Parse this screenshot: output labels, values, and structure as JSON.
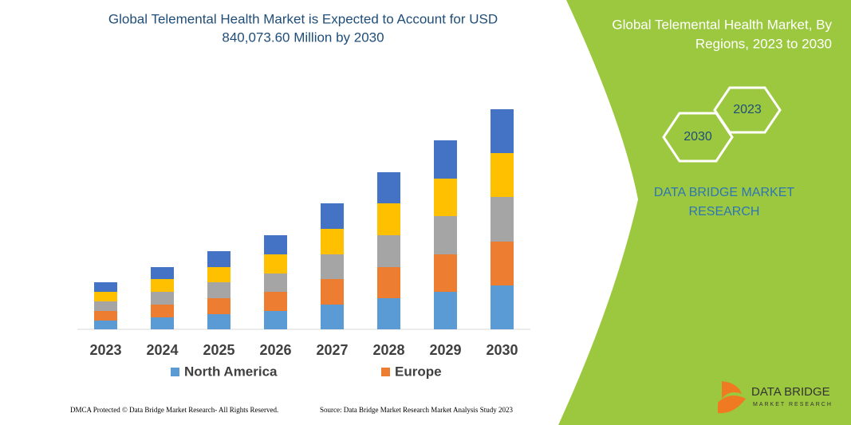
{
  "chart_data": {
    "type": "bar",
    "stacked": true,
    "title": [
      "Global Telemental Health Market is Expected to Account for USD",
      "840,073.60 Million by 2030"
    ],
    "categories": [
      "2023",
      "2024",
      "2025",
      "2026",
      "2027",
      "2028",
      "2029",
      "2030"
    ],
    "series": [
      {
        "name": "North America",
        "color": "#5b9bd5",
        "values": [
          11,
          15,
          19,
          23,
          31,
          39,
          47,
          55
        ]
      },
      {
        "name": "Europe",
        "color": "#ed7d31",
        "values": [
          12,
          16,
          20,
          24,
          32,
          39,
          47,
          55
        ]
      },
      {
        "color": "#a5a5a5",
        "values": [
          12,
          16,
          20,
          23,
          31,
          40,
          48,
          56
        ]
      },
      {
        "color": "#ffc000",
        "values": [
          12,
          16,
          19,
          24,
          32,
          40,
          47,
          55
        ]
      },
      {
        "color": "#4472c4",
        "values": [
          12,
          15,
          20,
          24,
          32,
          39,
          48,
          55
        ]
      }
    ],
    "ylim": [
      0,
      300
    ]
  },
  "panel": {
    "title": [
      "Global Telemental Health Market, By",
      "Regions, 2023 to 2030"
    ],
    "hexagons": [
      "2023",
      "2030"
    ],
    "brand": [
      "DATA BRIDGE MARKET",
      "RESEARCH"
    ]
  },
  "logo": {
    "name": "DATA BRIDGE",
    "tagline": "MARKET RESEARCH"
  },
  "footer": {
    "left": "DMCA Protected © Data Bridge Market Research- All Rights Reserved.",
    "right": "Source: Data Bridge Market Research Market Analysis Study 2023"
  }
}
